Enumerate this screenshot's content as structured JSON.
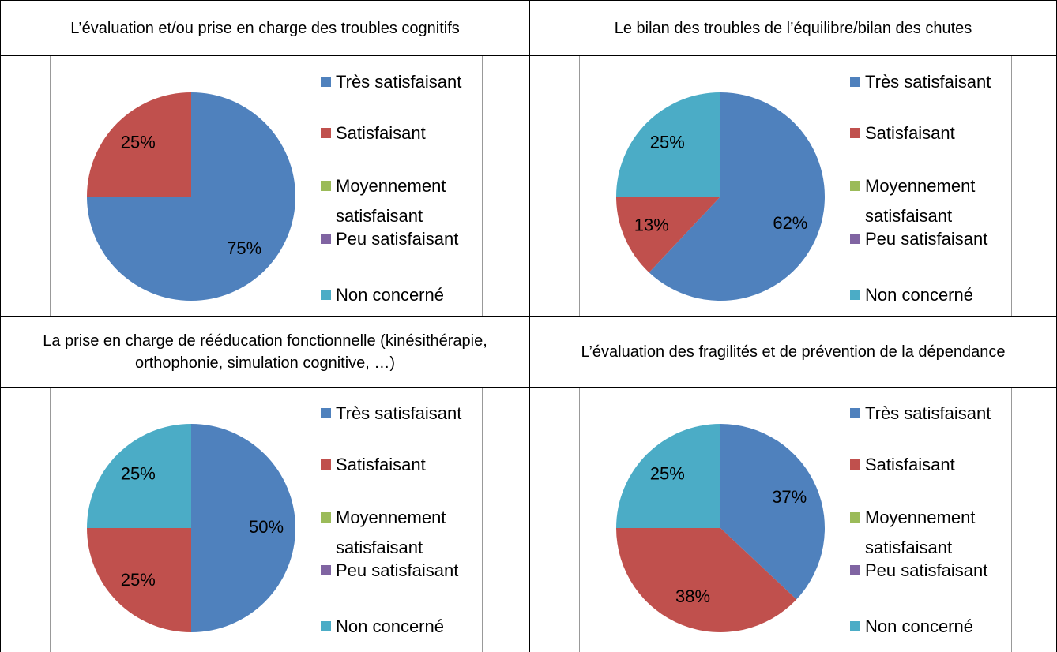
{
  "chart_data": [
    {
      "type": "pie",
      "title": "L’évaluation et/ou prise en charge des troubles cognitifs",
      "categories": [
        "Très satisfaisant",
        "Satisfaisant",
        "Moyennement satisfaisant",
        "Peu satisfaisant",
        "Non concerné"
      ],
      "values": [
        75,
        25,
        0,
        0,
        0
      ],
      "value_labels": [
        "75%",
        "25%",
        null,
        null,
        null
      ],
      "colors": [
        "#4f81bd",
        "#c0504d",
        "#9bbb59",
        "#8064a2",
        "#4bacc6"
      ]
    },
    {
      "type": "pie",
      "title": "Le bilan des troubles de l’équilibre/bilan des chutes",
      "categories": [
        "Très satisfaisant",
        "Satisfaisant",
        "Moyennement satisfaisant",
        "Peu satisfaisant",
        "Non concerné"
      ],
      "values": [
        62,
        13,
        0,
        0,
        25
      ],
      "value_labels": [
        "62%",
        "13%",
        null,
        null,
        "25%"
      ],
      "colors": [
        "#4f81bd",
        "#c0504d",
        "#9bbb59",
        "#8064a2",
        "#4bacc6"
      ]
    },
    {
      "type": "pie",
      "title": "La prise en charge de rééducation fonctionnelle (kinésithérapie, orthophonie, simulation cognitive, …)",
      "categories": [
        "Très satisfaisant",
        "Satisfaisant",
        "Moyennement satisfaisant",
        "Peu satisfaisant",
        "Non concerné"
      ],
      "values": [
        50,
        25,
        0,
        0,
        25
      ],
      "value_labels": [
        "50%",
        "25%",
        null,
        null,
        "25%"
      ],
      "colors": [
        "#4f81bd",
        "#c0504d",
        "#9bbb59",
        "#8064a2",
        "#4bacc6"
      ]
    },
    {
      "type": "pie",
      "title": "L’évaluation des fragilités et de prévention de la dépendance",
      "categories": [
        "Très satisfaisant",
        "Satisfaisant",
        "Moyennement satisfaisant",
        "Peu satisfaisant",
        "Non concerné"
      ],
      "values": [
        37,
        38,
        0,
        0,
        25
      ],
      "value_labels": [
        "37%",
        "38%",
        null,
        null,
        "25%"
      ],
      "colors": [
        "#4f81bd",
        "#c0504d",
        "#9bbb59",
        "#8064a2",
        "#4bacc6"
      ]
    }
  ]
}
